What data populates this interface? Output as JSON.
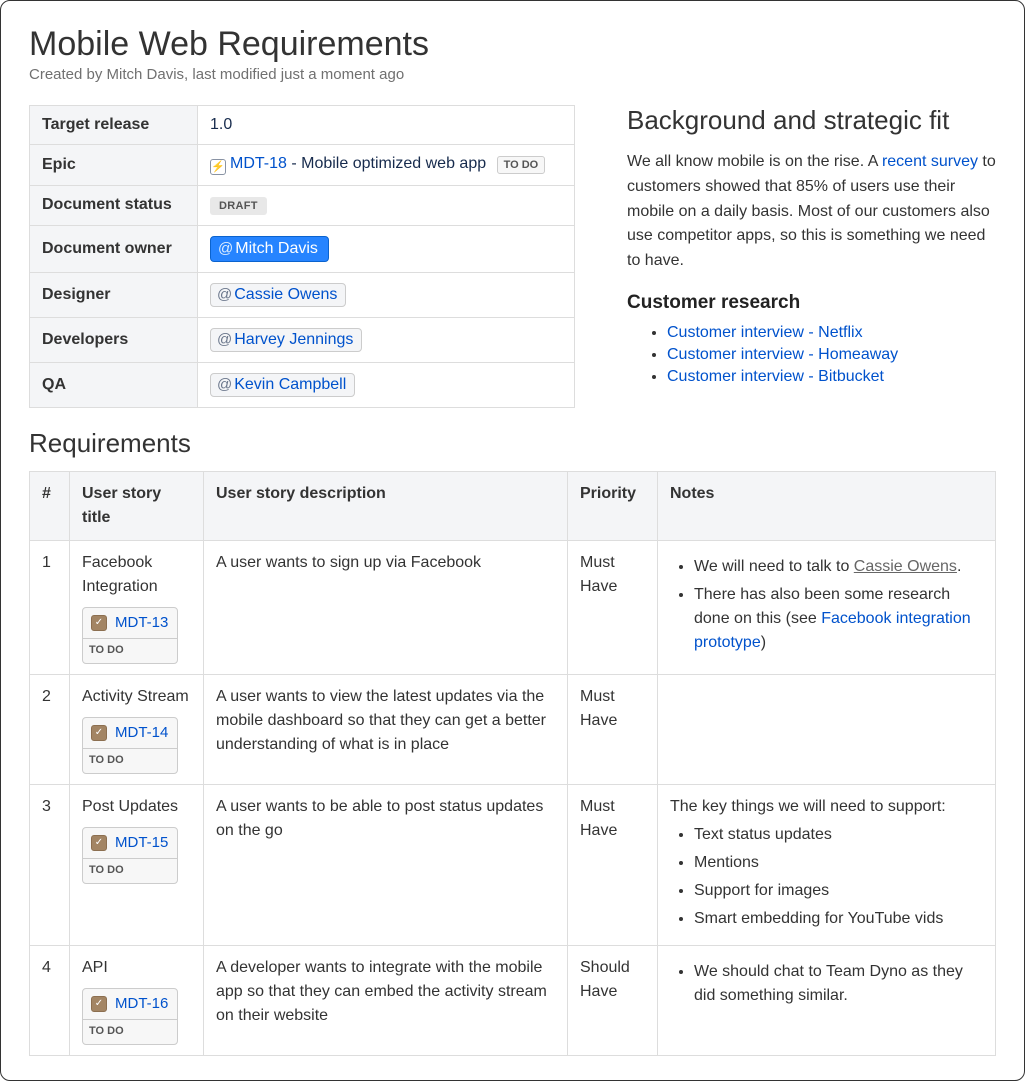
{
  "title": "Mobile Web Requirements",
  "byline": "Created by Mitch Davis, last modified just a moment ago",
  "meta": {
    "labels": {
      "target_release": "Target release",
      "epic": "Epic",
      "document_status": "Document status",
      "document_owner": "Document owner",
      "designer": "Designer",
      "developers": "Developers",
      "qa": "QA"
    },
    "target_release": "1.0",
    "epic_key": "MDT-18",
    "epic_summary": " - Mobile optimized web app",
    "epic_status": "TO DO",
    "document_status": "DRAFT",
    "document_owner": "Mitch Davis",
    "designer": "Cassie Owens",
    "developers": "Harvey Jennings",
    "qa": "Kevin Campbell"
  },
  "side": {
    "heading": "Background and strategic fit",
    "para_pre": "We all know mobile is on the rise. A ",
    "survey_link": "recent survey",
    "para_post": " to customers showed that 85% of users use their mobile on a daily basis. Most of our customers also use competitor apps, so this is something we need to have.",
    "research_heading": "Customer research",
    "research_links": [
      "Customer interview - Netflix",
      "Customer interview - Homeaway",
      "Customer interview - Bitbucket"
    ]
  },
  "req": {
    "heading": "Requirements",
    "headers": {
      "num": "#",
      "title": "User story title",
      "desc": "User story description",
      "prio": "Priority",
      "notes": "Notes"
    },
    "rows": [
      {
        "num": "1",
        "title": "Facebook Integration",
        "issue": "MDT-13",
        "status": "TO DO",
        "desc": "A user wants to sign up via Facebook",
        "prio": "Must Have",
        "note1_pre": "We will need to talk to ",
        "note1_mention": "Cassie Owens",
        "note1_post": ".",
        "note2_pre": "There has also been some research done on this (see ",
        "note2_link": "Facebook integration prototype",
        "note2_post": ")"
      },
      {
        "num": "2",
        "title": "Activity Stream",
        "issue": "MDT-14",
        "status": "TO DO",
        "desc": "A user wants to view the latest updates via the mobile dashboard so that they can get a better understanding of what is in place",
        "prio": "Must Have"
      },
      {
        "num": "3",
        "title": "Post Updates",
        "issue": "MDT-15",
        "status": "TO DO",
        "desc": "A user wants to be able to post status updates on the go",
        "prio": "Must Have",
        "notes_intro": "The key things we will need to support:",
        "notes_items": [
          "Text status updates",
          "Mentions",
          "Support for images",
          "Smart embedding for YouTube vids"
        ]
      },
      {
        "num": "4",
        "title": "API",
        "issue": "MDT-16",
        "status": "TO DO",
        "desc": "A developer wants to integrate with the mobile app so that they can embed the activity stream on their website",
        "prio": "Should Have",
        "note_single": "We should chat to Team Dyno as they did something similar."
      }
    ]
  },
  "colors": {
    "link": "#0052cc",
    "mention_bg": "#2684ff",
    "border": "#dddddd",
    "header_bg": "#f4f5f7",
    "text": "#172b4d"
  }
}
